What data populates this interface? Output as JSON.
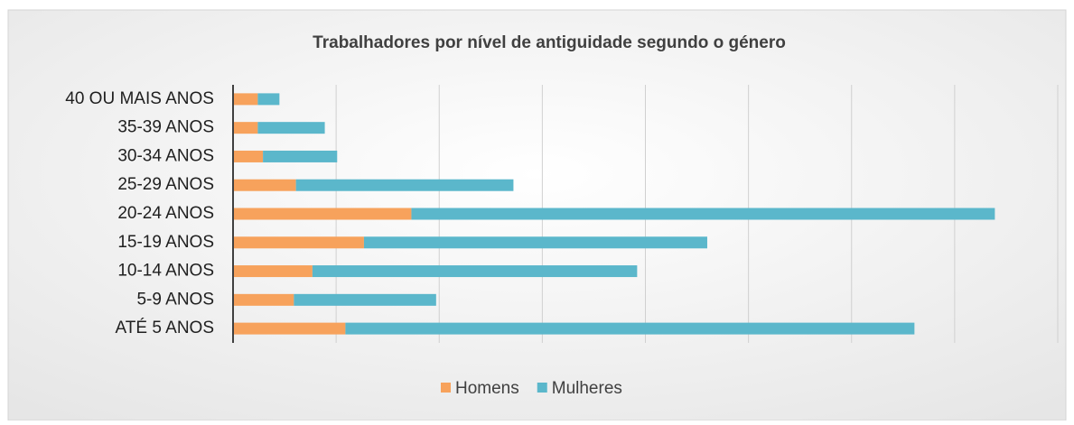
{
  "chart_data": {
    "type": "stacked-bar-horizontal",
    "title": "Trabalhadores por nível de antiguidade segundo o género",
    "categories": [
      "40 OU MAIS ANOS",
      "35-39 ANOS",
      "30-34 ANOS",
      "25-29 ANOS",
      "20-24 ANOS",
      "15-19 ANOS",
      "10-14 ANOS",
      "5-9 ANOS",
      "ATÉ 5 ANOS"
    ],
    "series": [
      {
        "name": "Homens",
        "color": "#f7a25c",
        "values": [
          24,
          24,
          29,
          61,
          173,
          127,
          77,
          59,
          109
        ]
      },
      {
        "name": "Mulheres",
        "color": "#5bb7cb",
        "values": [
          21,
          65,
          72,
          211,
          566,
          333,
          315,
          138,
          552
        ]
      }
    ],
    "xlim": [
      0,
      800
    ],
    "xticks": [
      0,
      100,
      200,
      300,
      400,
      500,
      600,
      700,
      800
    ],
    "grid": true,
    "legend": "bottom"
  }
}
